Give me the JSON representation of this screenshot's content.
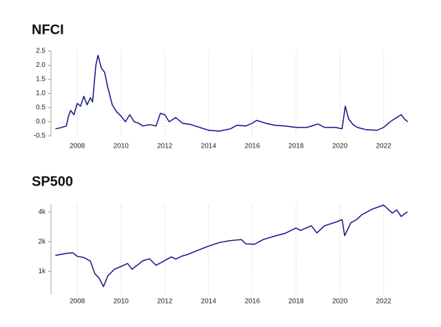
{
  "chart_data": [
    {
      "type": "line",
      "title": "NFCI",
      "color": "#1c1c8c",
      "grid": true,
      "x": [
        2007.0,
        2007.2,
        2007.5,
        2007.6,
        2007.7,
        2007.85,
        2008.0,
        2008.15,
        2008.3,
        2008.45,
        2008.6,
        2008.7,
        2008.85,
        2008.95,
        2009.1,
        2009.25,
        2009.4,
        2009.6,
        2009.8,
        2010.0,
        2010.2,
        2010.4,
        2010.6,
        2010.8,
        2011.0,
        2011.3,
        2011.6,
        2011.8,
        2012.0,
        2012.2,
        2012.5,
        2012.8,
        2013.2,
        2013.6,
        2014.0,
        2014.5,
        2015.0,
        2015.3,
        2015.7,
        2016.0,
        2016.2,
        2016.6,
        2017.0,
        2017.5,
        2018.0,
        2018.5,
        2019.0,
        2019.3,
        2019.8,
        2020.1,
        2020.25,
        2020.4,
        2020.6,
        2020.8,
        2021.2,
        2021.7,
        2022.0,
        2022.3,
        2022.6,
        2022.8,
        2022.95,
        2023.1
      ],
      "values": [
        -0.25,
        -0.22,
        -0.15,
        0.2,
        0.4,
        0.25,
        0.65,
        0.55,
        0.9,
        0.6,
        0.85,
        0.7,
        2.0,
        2.35,
        1.9,
        1.75,
        1.2,
        0.6,
        0.35,
        0.2,
        0.0,
        0.25,
        0.0,
        -0.05,
        -0.15,
        -0.1,
        -0.15,
        0.3,
        0.25,
        0.0,
        0.15,
        -0.05,
        -0.1,
        -0.2,
        -0.3,
        -0.33,
        -0.25,
        -0.12,
        -0.15,
        -0.05,
        0.05,
        -0.05,
        -0.12,
        -0.15,
        -0.2,
        -0.2,
        -0.08,
        -0.2,
        -0.2,
        -0.25,
        0.55,
        0.1,
        -0.1,
        -0.2,
        -0.28,
        -0.3,
        -0.2,
        0.0,
        0.15,
        0.25,
        0.1,
        0.0
      ],
      "xlim": [
        2006.8,
        2023.3
      ],
      "xticks": [
        2008,
        2010,
        2012,
        2014,
        2016,
        2018,
        2020,
        2022
      ],
      "ylim": [
        -0.5,
        2.5
      ],
      "yticks": [
        {
          "value": -0.5,
          "label": "-0.5"
        },
        {
          "value": 0,
          "label": "0.0"
        },
        0.5,
        {
          "value": 1,
          "label": "1.0"
        },
        1.5,
        {
          "value": 2,
          "label": "2.0"
        },
        2.5
      ]
    },
    {
      "type": "line",
      "title": "SP500",
      "color": "#1c1c8c",
      "grid": true,
      "log_y": true,
      "x": [
        2007.0,
        2007.5,
        2007.8,
        2008.0,
        2008.3,
        2008.6,
        2008.8,
        2009.0,
        2009.2,
        2009.4,
        2009.7,
        2010.0,
        2010.3,
        2010.5,
        2010.8,
        2011.0,
        2011.3,
        2011.6,
        2011.9,
        2012.3,
        2012.5,
        2012.8,
        2013.0,
        2013.5,
        2014.0,
        2014.5,
        2015.0,
        2015.5,
        2015.7,
        2016.1,
        2016.5,
        2017.0,
        2017.5,
        2018.0,
        2018.2,
        2018.7,
        2018.95,
        2019.3,
        2019.9,
        2020.1,
        2020.22,
        2020.5,
        2020.8,
        2021.0,
        2021.5,
        2022.0,
        2022.4,
        2022.6,
        2022.8,
        2023.0,
        2023.1
      ],
      "values": [
        1450,
        1520,
        1540,
        1420,
        1380,
        1270,
        950,
        850,
        700,
        900,
        1050,
        1120,
        1200,
        1050,
        1180,
        1280,
        1340,
        1150,
        1250,
        1400,
        1330,
        1430,
        1470,
        1630,
        1800,
        1960,
        2050,
        2100,
        1900,
        1880,
        2100,
        2270,
        2430,
        2750,
        2600,
        2900,
        2450,
        2900,
        3200,
        3350,
        2300,
        3100,
        3400,
        3750,
        4300,
        4700,
        3900,
        4200,
        3600,
        3900,
        4000
      ],
      "xlim": [
        2006.8,
        2023.3
      ],
      "xticks": [
        2008,
        2010,
        2012,
        2014,
        2016,
        2018,
        2020,
        2022
      ],
      "ylim": [
        580,
        4800
      ],
      "yticks": [
        {
          "value": 1000,
          "label": "1k"
        },
        {
          "value": 2000,
          "label": "2k"
        },
        {
          "value": 4000,
          "label": "4k"
        }
      ]
    }
  ]
}
